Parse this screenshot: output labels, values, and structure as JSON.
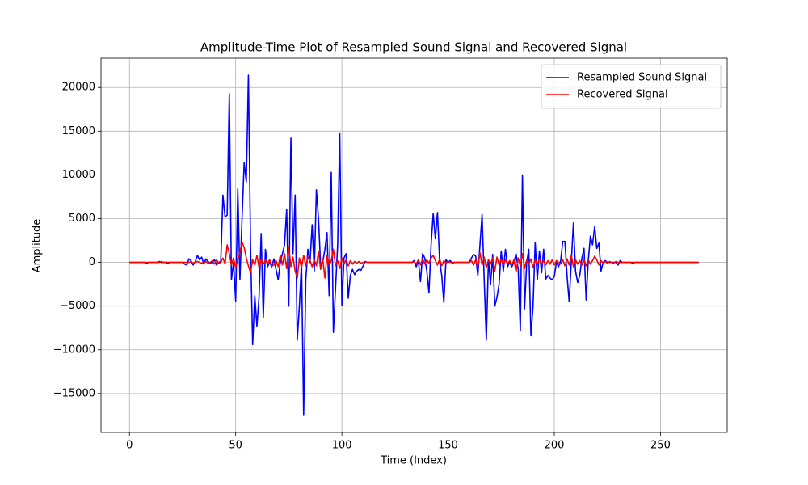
{
  "chart_data": {
    "type": "line",
    "title": "Amplitude-Time Plot of Resampled Sound Signal and Recovered Signal",
    "xlabel": "Time (Index)",
    "ylabel": "Amplitude",
    "x": [
      0,
      1,
      2,
      3,
      4,
      5,
      6,
      7,
      8,
      9,
      10,
      11,
      12,
      13,
      14,
      15,
      16,
      17,
      18,
      19,
      20,
      21,
      22,
      23,
      24,
      25,
      26,
      27,
      28,
      29,
      30,
      31,
      32,
      33,
      34,
      35,
      36,
      37,
      38,
      39,
      40,
      41,
      42,
      43,
      44,
      45,
      46,
      47,
      48,
      49,
      50,
      51,
      52,
      53,
      54,
      55,
      56,
      57,
      58,
      59,
      60,
      61,
      62,
      63,
      64,
      65,
      66,
      67,
      68,
      69,
      70,
      71,
      72,
      73,
      74,
      75,
      76,
      77,
      78,
      79,
      80,
      81,
      82,
      83,
      84,
      85,
      86,
      87,
      88,
      89,
      90,
      91,
      92,
      93,
      94,
      95,
      96,
      97,
      98,
      99,
      100,
      101,
      102,
      103,
      104,
      105,
      106,
      107,
      108,
      109,
      110,
      111,
      112,
      113,
      114,
      115,
      116,
      117,
      118,
      119,
      120,
      121,
      122,
      123,
      124,
      125,
      126,
      127,
      128,
      129,
      130,
      131,
      132,
      133,
      134,
      135,
      136,
      137,
      138,
      139,
      140,
      141,
      142,
      143,
      144,
      145,
      146,
      147,
      148,
      149,
      150,
      151,
      152,
      153,
      154,
      155,
      156,
      157,
      158,
      159,
      160,
      161,
      162,
      163,
      164,
      165,
      166,
      167,
      168,
      169,
      170,
      171,
      172,
      173,
      174,
      175,
      176,
      177,
      178,
      179,
      180,
      181,
      182,
      183,
      184,
      185,
      186,
      187,
      188,
      189,
      190,
      191,
      192,
      193,
      194,
      195,
      196,
      197,
      198,
      199,
      200,
      201,
      202,
      203,
      204,
      205,
      206,
      207,
      208,
      209,
      210,
      211,
      212,
      213,
      214,
      215,
      216,
      217,
      218,
      219,
      220,
      221,
      222,
      223,
      224,
      225,
      226,
      227,
      228,
      229,
      230,
      231,
      232,
      233,
      234,
      235,
      236,
      237,
      238,
      239,
      240,
      241,
      242,
      243,
      244,
      245,
      246,
      247,
      248,
      249,
      250,
      251,
      252,
      253,
      254,
      255,
      256,
      257,
      258,
      259,
      260,
      261,
      262,
      263,
      264,
      265,
      266,
      267,
      268
    ],
    "series": [
      {
        "name": "Resampled Sound Signal",
        "color": "#0000ff",
        "values": [
          0,
          0,
          0,
          0,
          0,
          0,
          0,
          0,
          -100,
          0,
          0,
          0,
          0,
          0,
          100,
          0,
          0,
          0,
          -100,
          0,
          0,
          0,
          0,
          0,
          0,
          0,
          -200,
          -300,
          400,
          200,
          -300,
          100,
          800,
          300,
          600,
          -200,
          400,
          100,
          -100,
          0,
          300,
          -300,
          0,
          100,
          7700,
          5200,
          5400,
          19300,
          -2000,
          0,
          -4400,
          8400,
          -2000,
          5000,
          11400,
          9200,
          21400,
          2000,
          -9400,
          -3800,
          -7300,
          -4000,
          3300,
          -6300,
          1500,
          -500,
          0,
          -500,
          400,
          -800,
          -2000,
          0,
          1000,
          2000,
          6100,
          -5000,
          14200,
          1000,
          7700,
          -8900,
          -5000,
          0,
          -17500,
          -2000,
          1500,
          0,
          4300,
          -1000,
          8300,
          5000,
          -500,
          0,
          1500,
          3400,
          -3800,
          10300,
          -8000,
          -3000,
          2000,
          14800,
          -4900,
          500,
          1000,
          -4100,
          -1500,
          -800,
          -1400,
          -1000,
          -800,
          -900,
          -400,
          100,
          0,
          0,
          0,
          0,
          0,
          0,
          0,
          0,
          0,
          0,
          0,
          0,
          0,
          0,
          0,
          0,
          0,
          0,
          0,
          0,
          0,
          0,
          200,
          -500,
          200,
          -2200,
          1000,
          500,
          -1000,
          -3500,
          2000,
          5600,
          2700,
          5700,
          200,
          -1500,
          -4600,
          300,
          0,
          200,
          -100,
          0,
          0,
          0,
          0,
          0,
          0,
          0,
          0,
          500,
          900,
          700,
          -1500,
          2000,
          5500,
          -2000,
          -8900,
          300,
          -2500,
          900,
          -5000,
          -4000,
          -2500,
          1300,
          -1000,
          1500,
          -500,
          0,
          -500,
          0,
          1000,
          -800,
          -7800,
          10000,
          -5300,
          0,
          1500,
          -8400,
          -5000,
          2300,
          -2000,
          1300,
          -1200,
          1500,
          -1900,
          -1500,
          -1800,
          -2000,
          -1600,
          0,
          -500,
          200,
          2400,
          2400,
          -1500,
          -4500,
          0,
          4500,
          -1000,
          -2300,
          -1500,
          500,
          1600,
          -4300,
          200,
          3000,
          2000,
          4100,
          1600,
          2200,
          -1000,
          0,
          200,
          0,
          0,
          0,
          0,
          0,
          -300,
          200,
          0,
          0,
          0,
          0,
          0,
          -100,
          0,
          0,
          0,
          0,
          0,
          0,
          0,
          0,
          0,
          0,
          0,
          0,
          0,
          0,
          0,
          0,
          0,
          0,
          0,
          0,
          0,
          0,
          0,
          0,
          0,
          0,
          0,
          0,
          0,
          0,
          0
        ]
      },
      {
        "name": "Recovered Signal",
        "color": "#ff0000",
        "values": [
          0,
          0,
          0,
          0,
          0,
          0,
          0,
          0,
          0,
          0,
          0,
          0,
          0,
          0,
          0,
          100,
          0,
          0,
          0,
          0,
          0,
          0,
          0,
          0,
          0,
          0,
          0,
          0,
          0,
          100,
          -100,
          50,
          100,
          0,
          -100,
          0,
          100,
          -100,
          0,
          200,
          -200,
          300,
          -100,
          0,
          500,
          -200,
          2000,
          1000,
          -300,
          500,
          -600,
          300,
          1200,
          2300,
          1700,
          500,
          -400,
          -1200,
          300,
          -300,
          800,
          -600,
          400,
          -200,
          200,
          -100,
          300,
          -400,
          -300,
          200,
          -500,
          800,
          -300,
          1000,
          -700,
          1800,
          -500,
          600,
          -1000,
          -1800,
          500,
          -600,
          800,
          -400,
          600,
          200,
          -500,
          300,
          -400,
          1200,
          -800,
          400,
          -1800,
          800,
          -300,
          200,
          1500,
          -400,
          200,
          -700,
          500,
          -200,
          300,
          -400,
          200,
          -200,
          100,
          -100,
          100,
          -100,
          0,
          100,
          0,
          0,
          0,
          0,
          0,
          0,
          0,
          0,
          0,
          0,
          0,
          0,
          0,
          0,
          0,
          0,
          0,
          0,
          0,
          0,
          0,
          0,
          100,
          -200,
          300,
          -300,
          400,
          -200,
          300,
          -100,
          500,
          800,
          200,
          -300,
          400,
          -400,
          200,
          -100,
          100,
          0,
          0,
          0,
          0,
          0,
          0,
          0,
          0,
          0,
          0,
          200,
          -300,
          300,
          -500,
          1100,
          -300,
          600,
          -600,
          300,
          -200,
          500,
          -1000,
          600,
          -300,
          400,
          -300,
          300,
          -200,
          200,
          -300,
          300,
          -1100,
          500,
          -400,
          1000,
          -700,
          300,
          -200,
          400,
          -600,
          300,
          -300,
          400,
          -200,
          200,
          -300,
          200,
          -200,
          300,
          -300,
          200,
          0,
          -200,
          300,
          -400,
          400,
          -300,
          800,
          -500,
          300,
          -200,
          200,
          -300,
          300,
          -400,
          300,
          -200,
          200,
          700,
          300,
          -300,
          200,
          -100,
          100,
          -100,
          100,
          0,
          -100,
          100,
          0,
          0,
          0,
          0,
          0,
          0,
          0,
          0,
          0,
          0,
          0,
          0,
          0,
          0,
          0,
          0,
          0,
          0,
          0,
          0,
          0,
          0,
          0,
          0,
          0,
          0,
          0,
          0,
          0,
          0,
          0,
          0,
          0,
          0,
          0,
          0,
          0,
          0,
          0
        ]
      }
    ],
    "xlim": [
      -13.4,
      281.4
    ],
    "ylim": [
      -19450,
      23350
    ],
    "xticks": [
      0,
      50,
      100,
      150,
      200,
      250
    ],
    "yticks": [
      {
        "value": -15000,
        "label": "−15000"
      },
      {
        "value": -10000,
        "label": "−10000"
      },
      {
        "value": -5000,
        "label": "−5000"
      },
      0,
      5000,
      10000,
      15000,
      20000
    ],
    "grid": true,
    "legend": "upper right"
  }
}
